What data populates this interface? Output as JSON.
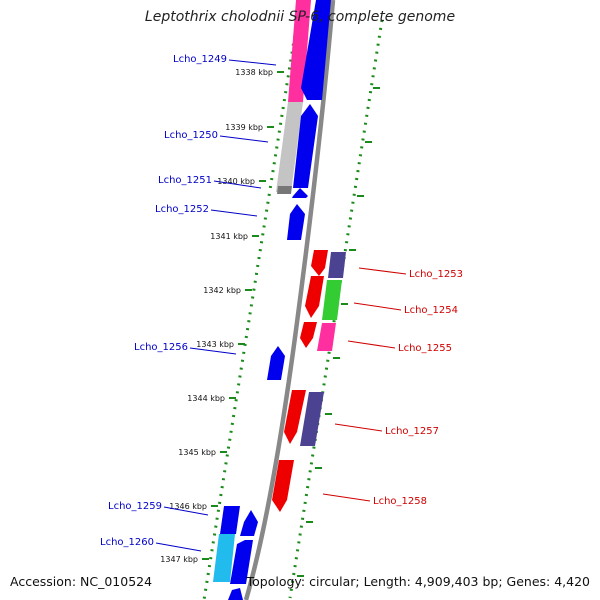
{
  "title": "Leptothrix cholodnii SP-6, complete genome",
  "footer": {
    "accession": "Accession: NC_010524",
    "summary": "Topology: circular; Length: 4,909,403 bp; Genes: 4,420"
  },
  "ticks": [
    "1338 kbp",
    "1339 kbp",
    "1340 kbp",
    "1341 kbp",
    "1342 kbp",
    "1343 kbp",
    "1344 kbp",
    "1345 kbp",
    "1346 kbp",
    "1347 kbp"
  ],
  "genes_left": [
    "Lcho_1249",
    "Lcho_1250",
    "Lcho_1251",
    "Lcho_1252",
    "Lcho_1256",
    "Lcho_1259",
    "Lcho_1260"
  ],
  "genes_right": [
    "Lcho_1253",
    "Lcho_1254",
    "Lcho_1255",
    "Lcho_1257",
    "Lcho_1258"
  ],
  "colors": {
    "left_label": "#0000c8",
    "right_label": "#d00000",
    "gene_blue": "#0000ee",
    "gene_red": "#ee0000",
    "gene_pink": "#ff2fa0",
    "gene_purple": "#4b4292",
    "gene_green": "#33cc33",
    "gene_cyan": "#22bbee",
    "gene_gray": "#c0c0c0",
    "backbone": "#909090",
    "ruler_dots": "#1a8a1a"
  }
}
